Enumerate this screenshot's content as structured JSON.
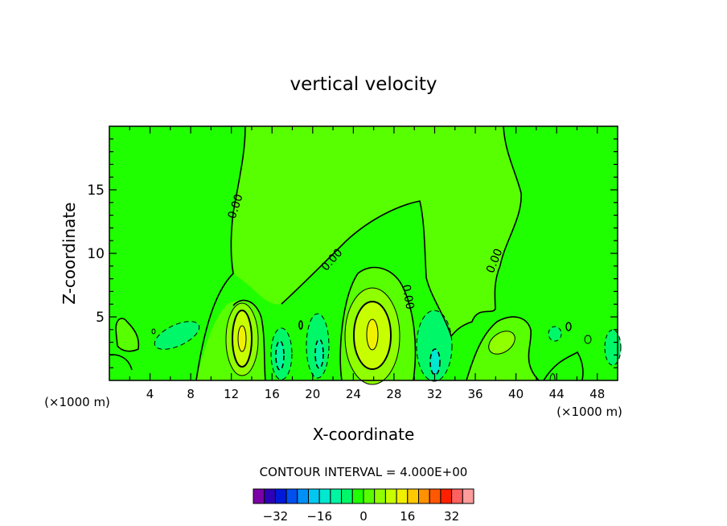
{
  "chart_data": {
    "type": "heatmap",
    "subtype": "filled-contour",
    "title": "vertical velocity",
    "xlabel": "X-coordinate",
    "ylabel": "Z-coordinate",
    "x_unit_label": "(×1000 m)",
    "xlim": [
      0,
      50
    ],
    "ylim": [
      0,
      20
    ],
    "x_ticks": [
      4,
      8,
      12,
      16,
      20,
      24,
      28,
      32,
      36,
      40,
      44,
      48
    ],
    "y_ticks": [
      5,
      10,
      15
    ],
    "contour_interval_text": "CONTOUR INTERVAL = 4.000E+00",
    "contour_line_labels": [
      "0.00",
      "0.00",
      "0.00",
      "0.00"
    ],
    "colorbar": {
      "levels": [
        -40,
        -36,
        -32,
        -28,
        -24,
        -20,
        -16,
        -12,
        -8,
        -4,
        0,
        4,
        8,
        12,
        16,
        20,
        24,
        28,
        32,
        36,
        40
      ],
      "tick_labels": [
        "−32",
        "−16",
        "0",
        "16",
        "32"
      ],
      "tick_values": [
        -32,
        -16,
        0,
        16,
        32
      ],
      "colors": [
        "#7b00a8",
        "#2f00b8",
        "#0018d8",
        "#0050f0",
        "#0090f8",
        "#00c8f0",
        "#00e8d0",
        "#00f5a0",
        "#00f868",
        "#20ff00",
        "#58ff00",
        "#90ff00",
        "#c8ff00",
        "#f0f000",
        "#ffc800",
        "#ff9000",
        "#ff5800",
        "#ff2000",
        "#ff6060",
        "#ff9c9c"
      ]
    },
    "features": [
      {
        "kind": "updraft",
        "center_x": 13.2,
        "center_z": 3.2,
        "max_value": 16
      },
      {
        "kind": "updraft",
        "center_x": 25.8,
        "center_z": 3.7,
        "max_value": 16
      },
      {
        "kind": "downdraft",
        "center_x": 17,
        "center_z": 2.5,
        "min_value": -8
      },
      {
        "kind": "downdraft",
        "center_x": 20.5,
        "center_z": 2.8,
        "min_value": -8
      },
      {
        "kind": "downdraft",
        "center_x": 32,
        "center_z": 1.5,
        "min_value": -8
      },
      {
        "kind": "updraft",
        "center_x": 39,
        "center_z": 2.8,
        "max_value": 8
      }
    ]
  }
}
